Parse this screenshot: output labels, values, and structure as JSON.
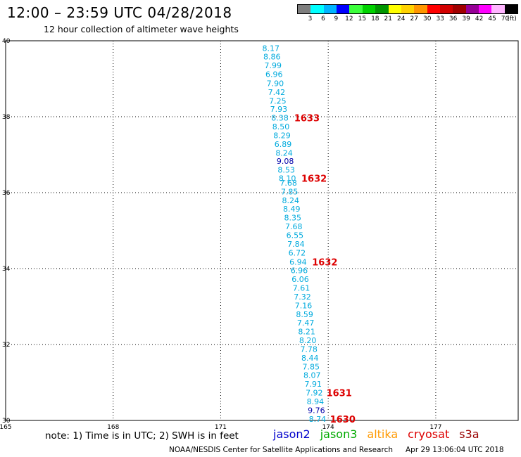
{
  "header": {
    "title": "12:00 – 23:59 UTC 04/28/2018",
    "subtitle": "12 hour collection of altimeter wave heights"
  },
  "legend": {
    "unit_label": "(ft)",
    "bins": [
      {
        "label": "3",
        "color": "#7f7f7f"
      },
      {
        "label": "6",
        "color": "#00ffff"
      },
      {
        "label": "9",
        "color": "#00b4ff"
      },
      {
        "label": "12",
        "color": "#0000ff"
      },
      {
        "label": "15",
        "color": "#3cff3c"
      },
      {
        "label": "18",
        "color": "#00d200"
      },
      {
        "label": "21",
        "color": "#009600"
      },
      {
        "label": "24",
        "color": "#ffff00"
      },
      {
        "label": "27",
        "color": "#ffd200"
      },
      {
        "label": "30",
        "color": "#ff9600"
      },
      {
        "label": "33",
        "color": "#ff0000"
      },
      {
        "label": "36",
        "color": "#d20000"
      },
      {
        "label": "39",
        "color": "#a00000"
      },
      {
        "label": "42",
        "color": "#960096"
      },
      {
        "label": "45",
        "color": "#ff00ff"
      },
      {
        "label": "70",
        "color": "#ffb4ff"
      },
      {
        "label": "",
        "color": "#000000"
      }
    ]
  },
  "note": "note: 1) Time is in UTC; 2) SWH is in feet",
  "satellites": [
    {
      "name": "jason2",
      "color": "#0000cc"
    },
    {
      "name": "jason3",
      "color": "#00aa00"
    },
    {
      "name": "altika",
      "color": "#ff9900"
    },
    {
      "name": "cryosat",
      "color": "#dd0000"
    },
    {
      "name": "s3a",
      "color": "#990000"
    }
  ],
  "footer": {
    "credit": "NOAA/NESDIS Center for Satellite Applications and Research",
    "timestamp": "Apr 29 13:06:04 UTC 2018"
  },
  "chart_data": {
    "type": "scatter",
    "xlim": [
      165,
      179.3
    ],
    "ylim": [
      30,
      40
    ],
    "x_ticks": [
      165,
      168,
      171,
      174,
      177
    ],
    "x_tick_labels": [
      "165",
      "168",
      "171",
      "174",
      "177"
    ],
    "y_ticks": [
      30,
      32,
      34,
      36,
      38,
      40
    ],
    "y_tick_labels": [
      "30",
      "32",
      "34",
      "36",
      "38",
      "40"
    ],
    "grid": true,
    "colors": {
      "cyan_label": "#00aadd",
      "blue_label": "#0000aa",
      "time_label": "#dd0000"
    },
    "points": [
      {
        "lon": 172.4,
        "lat": 39.81,
        "v": "8.17",
        "c": "cyan"
      },
      {
        "lon": 172.43,
        "lat": 39.58,
        "v": "8.86",
        "c": "cyan"
      },
      {
        "lon": 172.46,
        "lat": 39.35,
        "v": "7.99",
        "c": "cyan"
      },
      {
        "lon": 172.49,
        "lat": 39.12,
        "v": "6.96",
        "c": "cyan"
      },
      {
        "lon": 172.52,
        "lat": 38.88,
        "v": "7.90",
        "c": "cyan"
      },
      {
        "lon": 172.56,
        "lat": 38.65,
        "v": "7.42",
        "c": "cyan"
      },
      {
        "lon": 172.59,
        "lat": 38.42,
        "v": "7.25",
        "c": "cyan"
      },
      {
        "lon": 172.62,
        "lat": 38.2,
        "v": "7.93",
        "c": "cyan"
      },
      {
        "lon": 172.65,
        "lat": 37.97,
        "v": "8.38",
        "c": "cyan"
      },
      {
        "lon": 172.68,
        "lat": 37.74,
        "v": "8.50",
        "c": "cyan"
      },
      {
        "lon": 172.71,
        "lat": 37.51,
        "v": "8.29",
        "c": "cyan"
      },
      {
        "lon": 172.74,
        "lat": 37.28,
        "v": "6.89",
        "c": "cyan"
      },
      {
        "lon": 172.77,
        "lat": 37.05,
        "v": "8.24",
        "c": "cyan"
      },
      {
        "lon": 172.8,
        "lat": 36.83,
        "v": "9.08",
        "c": "blue"
      },
      {
        "lon": 172.83,
        "lat": 36.6,
        "v": "8.53",
        "c": "cyan"
      },
      {
        "lon": 172.86,
        "lat": 36.38,
        "v": "8.10",
        "c": "cyan"
      },
      {
        "lon": 172.89,
        "lat": 36.26,
        "v": "7.68",
        "c": "cyan"
      },
      {
        "lon": 172.92,
        "lat": 36.03,
        "v": "7.85",
        "c": "cyan"
      },
      {
        "lon": 172.95,
        "lat": 35.8,
        "v": "8.24",
        "c": "cyan"
      },
      {
        "lon": 172.98,
        "lat": 35.57,
        "v": "8.49",
        "c": "cyan"
      },
      {
        "lon": 173.01,
        "lat": 35.34,
        "v": "8.35",
        "c": "cyan"
      },
      {
        "lon": 173.04,
        "lat": 35.11,
        "v": "7.68",
        "c": "cyan"
      },
      {
        "lon": 173.07,
        "lat": 34.88,
        "v": "6.55",
        "c": "cyan"
      },
      {
        "lon": 173.1,
        "lat": 34.65,
        "v": "7.84",
        "c": "cyan"
      },
      {
        "lon": 173.13,
        "lat": 34.42,
        "v": "6.72",
        "c": "cyan"
      },
      {
        "lon": 173.16,
        "lat": 34.18,
        "v": "6.94",
        "c": "cyan"
      },
      {
        "lon": 173.19,
        "lat": 33.95,
        "v": "6.96",
        "c": "cyan"
      },
      {
        "lon": 173.22,
        "lat": 33.72,
        "v": "6.06",
        "c": "cyan"
      },
      {
        "lon": 173.25,
        "lat": 33.49,
        "v": "7.61",
        "c": "cyan"
      },
      {
        "lon": 173.28,
        "lat": 33.26,
        "v": "7.32",
        "c": "cyan"
      },
      {
        "lon": 173.31,
        "lat": 33.03,
        "v": "7.16",
        "c": "cyan"
      },
      {
        "lon": 173.34,
        "lat": 32.8,
        "v": "8.59",
        "c": "cyan"
      },
      {
        "lon": 173.37,
        "lat": 32.57,
        "v": "7.47",
        "c": "cyan"
      },
      {
        "lon": 173.4,
        "lat": 32.34,
        "v": "8.21",
        "c": "cyan"
      },
      {
        "lon": 173.43,
        "lat": 32.11,
        "v": "8.20",
        "c": "cyan"
      },
      {
        "lon": 173.46,
        "lat": 31.88,
        "v": "7.78",
        "c": "cyan"
      },
      {
        "lon": 173.49,
        "lat": 31.65,
        "v": "8.44",
        "c": "cyan"
      },
      {
        "lon": 173.52,
        "lat": 31.42,
        "v": "7.85",
        "c": "cyan"
      },
      {
        "lon": 173.55,
        "lat": 31.19,
        "v": "8.07",
        "c": "cyan"
      },
      {
        "lon": 173.58,
        "lat": 30.96,
        "v": "7.91",
        "c": "cyan"
      },
      {
        "lon": 173.61,
        "lat": 30.73,
        "v": "7.92",
        "c": "cyan"
      },
      {
        "lon": 173.64,
        "lat": 30.5,
        "v": "8.94",
        "c": "cyan"
      },
      {
        "lon": 173.67,
        "lat": 30.27,
        "v": "9.76",
        "c": "blue"
      },
      {
        "lon": 173.7,
        "lat": 30.04,
        "v": "8.74",
        "c": "cyan"
      }
    ],
    "time_labels": [
      {
        "lon": 173.05,
        "lat": 37.97,
        "text": "1633"
      },
      {
        "lon": 173.25,
        "lat": 36.38,
        "text": "1632"
      },
      {
        "lon": 173.55,
        "lat": 34.18,
        "text": "1632"
      },
      {
        "lon": 173.95,
        "lat": 30.73,
        "text": "1631"
      },
      {
        "lon": 174.05,
        "lat": 30.04,
        "text": "1630"
      }
    ]
  }
}
